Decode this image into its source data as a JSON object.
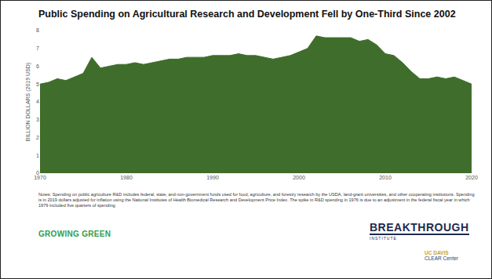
{
  "chart_data": {
    "type": "area",
    "title": "Public Spending on Agricultural Research and Development Fell by One-Third Since 2002",
    "y_label": "BILLION DOLLARS (2019 USD)",
    "x": [
      1970,
      1971,
      1972,
      1973,
      1974,
      1975,
      1976,
      1977,
      1978,
      1979,
      1980,
      1981,
      1982,
      1983,
      1984,
      1985,
      1986,
      1987,
      1988,
      1989,
      1990,
      1991,
      1992,
      1993,
      1994,
      1995,
      1996,
      1997,
      1998,
      1999,
      2000,
      2001,
      2002,
      2003,
      2004,
      2005,
      2006,
      2007,
      2008,
      2009,
      2010,
      2011,
      2012,
      2013,
      2014,
      2015,
      2016,
      2017,
      2018,
      2019,
      2020
    ],
    "values": [
      5.0,
      5.1,
      5.3,
      5.2,
      5.4,
      5.6,
      6.5,
      5.9,
      6.0,
      6.1,
      6.1,
      6.2,
      6.1,
      6.2,
      6.3,
      6.4,
      6.4,
      6.5,
      6.5,
      6.5,
      6.6,
      6.6,
      6.6,
      6.7,
      6.6,
      6.6,
      6.5,
      6.4,
      6.5,
      6.6,
      6.8,
      7.0,
      7.7,
      7.6,
      7.6,
      7.6,
      7.6,
      7.4,
      7.5,
      7.2,
      6.7,
      6.6,
      6.2,
      5.7,
      5.3,
      5.3,
      5.4,
      5.3,
      5.4,
      5.2,
      5.0
    ],
    "color": "#3f6d2b",
    "xlim": [
      1970,
      2020
    ],
    "xticks": [
      1970,
      1980,
      1990,
      2000,
      2010,
      2020
    ],
    "ylim": [
      0,
      8
    ],
    "yticks": [
      0,
      1,
      2,
      3,
      4,
      5,
      6,
      7,
      8
    ],
    "grid": false,
    "note": "Notes: Spending on public agriculture R&D includes federal, state, and non-government funds used for food, agriculture, and forestry research by the USDA, land-grant universities, and other cooperating institutions. Spending is in 2019 dollars adjusted for inflation using the National Institutes of Health Biomedical Research and Development Price Index. The spike in R&D spending in 1976 is due to an adjustment in the federal fiscal year in which 1979 included five quarters of spending.",
    "footer_left": "GROWING GREEN",
    "footer_right": [
      "BREAKTHROUGH",
      "INSTITUTE",
      "UC DAVIS",
      "CLEAR Center"
    ]
  }
}
